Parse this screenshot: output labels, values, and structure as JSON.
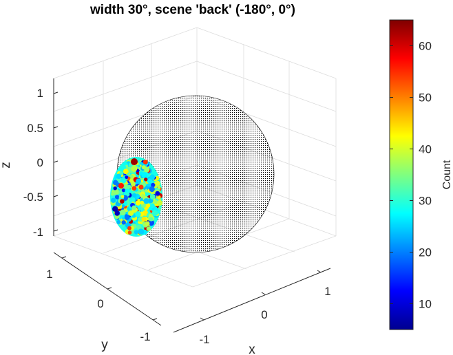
{
  "chart_data": {
    "type": "scatter3d",
    "title": "width 30°, scene 'back' (-180°, 0°)",
    "xlabel": "x",
    "ylabel": "y",
    "zlabel": "z",
    "x_ticks": [
      "-1",
      "0",
      "1"
    ],
    "y_ticks": [
      "1",
      "0",
      "-1"
    ],
    "z_ticks": [
      "1",
      "0.5",
      "0",
      "-0.5",
      "-1"
    ],
    "xlim": [
      -1.2,
      1.2
    ],
    "ylim": [
      -1.2,
      1.2
    ],
    "zlim": [
      -1.2,
      1.2
    ],
    "grid": true,
    "sphere": {
      "radius": 1,
      "marker_color": "#000000",
      "marker": "dot"
    },
    "patch": {
      "center_azimuth_deg": -180,
      "center_elevation_deg": 0,
      "width_deg": 30,
      "colormap": "jet"
    },
    "colorbar": {
      "label": "Count",
      "limits": [
        5,
        65
      ],
      "ticks": [
        "10",
        "20",
        "30",
        "40",
        "50",
        "60"
      ],
      "tick_values": [
        10,
        20,
        30,
        40,
        50,
        60
      ]
    }
  }
}
